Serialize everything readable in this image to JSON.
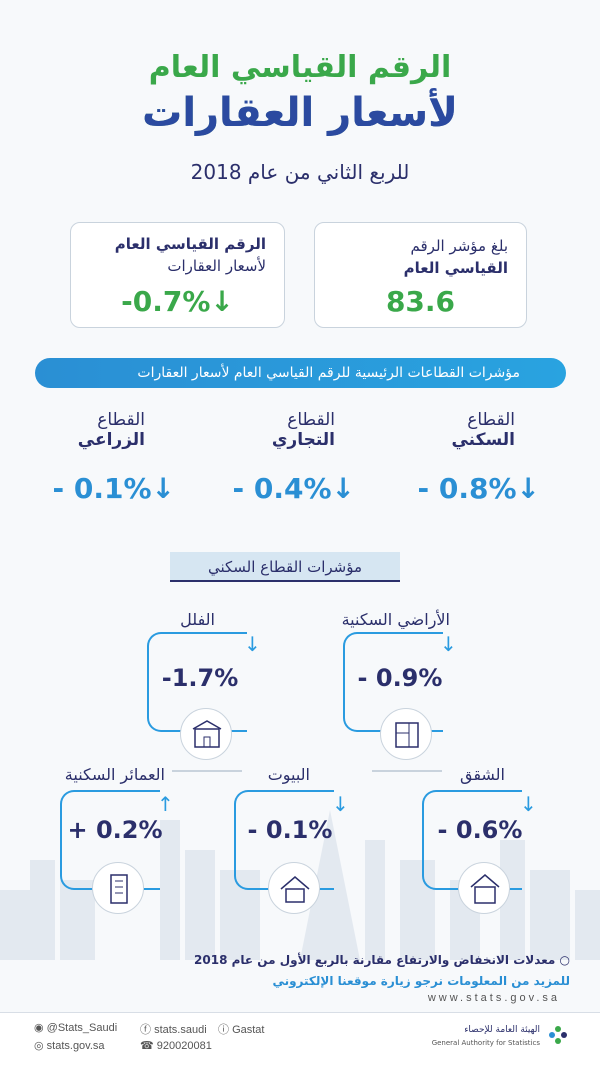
{
  "header": {
    "title_line1": "الرقم القياسي العام",
    "title_line2": "لأسعار العقارات",
    "subtitle": "للربع الثاني من عام 2018"
  },
  "cards": {
    "index": {
      "line1": "بلغ مؤشر الرقم",
      "line2": "القياسي العام",
      "value": "83.6"
    },
    "general": {
      "line1": "الرقم القياسي العام",
      "line2": "لأسعار العقارات",
      "value": "-0.7%↓"
    }
  },
  "sectors_bar": "مؤشرات القطاعات الرئيسية للرقم القياسي العام لأسعار العقارات",
  "sectors": [
    {
      "label1": "القطاع",
      "label2": "السكني",
      "value": "- 0.8%↓"
    },
    {
      "label1": "القطاع",
      "label2": "التجاري",
      "value": "- 0.4%↓"
    },
    {
      "label1": "القطاع",
      "label2": "الزراعي",
      "value": "- 0.1%↓"
    }
  ],
  "residential_title": "مؤشرات القطاع السكني",
  "residential": [
    {
      "label": "الأراضي السكنية",
      "value": "- 0.9%",
      "icon": "land-plan-icon",
      "direction": "down"
    },
    {
      "label": "الفلل",
      "value": "-1.7%",
      "icon": "villa-icon",
      "direction": "down"
    },
    {
      "label": "الشقق",
      "value": "- 0.6%",
      "icon": "apartment-icon",
      "direction": "down"
    },
    {
      "label": "البيوت",
      "value": "- 0.1%",
      "icon": "house-icon",
      "direction": "down"
    },
    {
      "label": "العمائر السكنية",
      "value": "+ 0.2%",
      "icon": "building-icon",
      "direction": "up"
    }
  ],
  "notes": {
    "note1": "معدلات الانخفاض والارتفاع مقارنة بالربع الأول من عام 2018",
    "note2": "للمزيد من المعلومات نرجو زيارة موقعنا الإلكتروني",
    "website": "www.stats.gov.sa"
  },
  "footer": {
    "twitter": "@Stats_Saudi",
    "facebook": "stats.saudi",
    "linkedin": "Gastat",
    "email": "stats.gov.sa",
    "phone": "920020081",
    "org_ar": "الهيئة العامة للإحصاء",
    "org_en": "General Authority for Statistics"
  },
  "colors": {
    "green": "#3aa84a",
    "blue": "#2a8fd4",
    "navy": "#2b2f6b"
  }
}
